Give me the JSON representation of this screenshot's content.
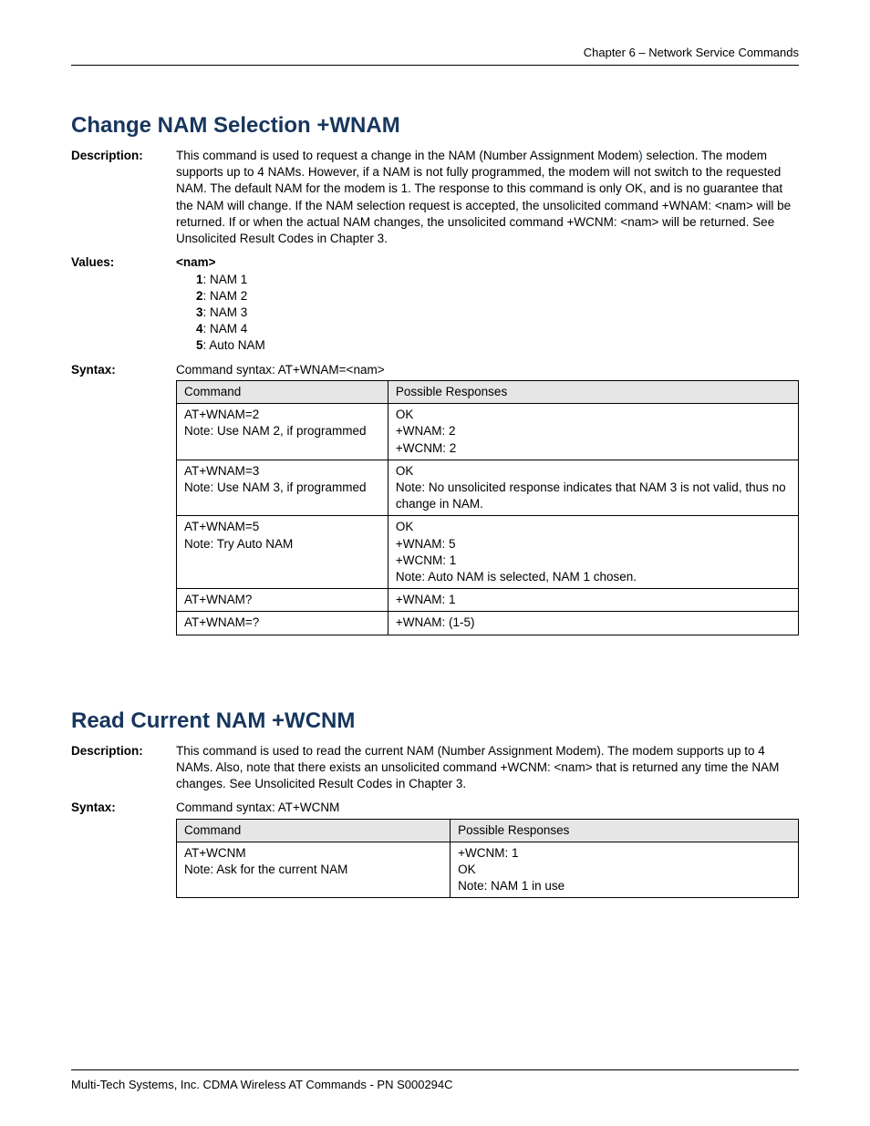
{
  "header": {
    "chapter": "Chapter 6 – Network Service Commands"
  },
  "section1": {
    "heading": "Change NAM Selection  +WNAM",
    "label_description": "Description:",
    "description_pre": "This command is used to request a change in the NAM (Number Assignment Modem",
    "description_paren": ")",
    "description_post": " selection. The modem supports up to 4 NAMs. However, if a NAM is not fully programmed, the modem will not switch to the requested NAM. The default NAM for the modem is 1. The response to this command is only OK, and is no guarantee that the NAM will change. If the NAM selection request is accepted, the unsolicited command +WNAM: <nam> will be returned. If or when the actual NAM changes, the unsolicited command +WCNM: <nam> will be returned. See Unsolicited Result Codes in Chapter 3.",
    "label_values": "Values:",
    "values_heading": "<nam>",
    "values_list": [
      {
        "n": "1",
        "t": ": NAM 1"
      },
      {
        "n": "2",
        "t": ": NAM 2"
      },
      {
        "n": "3",
        "t": ": NAM 3"
      },
      {
        "n": "4",
        "t": ": NAM 4"
      },
      {
        "n": "5",
        "t": ": Auto NAM"
      }
    ],
    "label_syntax": "Syntax:",
    "syntax_text": "Command syntax: AT+WNAM=<nam>",
    "table": {
      "columns": [
        "Command",
        "Possible Responses"
      ],
      "rows": [
        [
          "AT+WNAM=2\nNote: Use NAM 2, if programmed",
          "OK\n+WNAM: 2\n+WCNM: 2"
        ],
        [
          "AT+WNAM=3\nNote: Use NAM 3, if programmed",
          "OK\nNote: No unsolicited response indicates that NAM 3 is not valid, thus no change in NAM."
        ],
        [
          "AT+WNAM=5\nNote: Try Auto NAM",
          "OK\n+WNAM: 5\n+WCNM: 1\nNote: Auto NAM is selected, NAM 1 chosen."
        ],
        [
          "AT+WNAM?",
          "+WNAM: 1"
        ],
        [
          "AT+WNAM=?",
          "+WNAM: (1-5)"
        ]
      ]
    }
  },
  "section2": {
    "heading": "Read Current NAM  +WCNM",
    "label_description": "Description:",
    "description": "This command is used to read the current NAM (Number Assignment Modem). The modem supports up to 4 NAMs. Also, note that there exists an unsolicited command +WCNM: <nam> that is returned any time the NAM changes. See Unsolicited Result Codes in Chapter 3.",
    "label_syntax": "Syntax:",
    "syntax_text": "Command syntax: AT+WCNM",
    "table": {
      "columns": [
        "Command",
        "Possible Responses"
      ],
      "rows": [
        [
          "AT+WCNM\nNote: Ask for the current NAM",
          "+WCNM: 1\nOK\nNote: NAM 1 in use"
        ]
      ]
    }
  },
  "footer": {
    "text": "Multi-Tech Systems, Inc. CDMA Wireless AT Commands - PN S000294C"
  }
}
